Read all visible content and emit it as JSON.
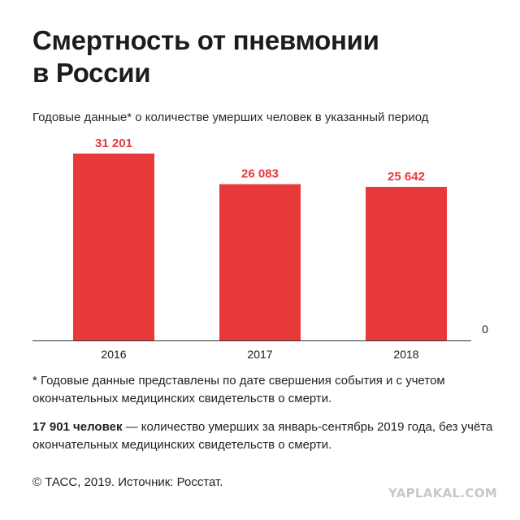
{
  "title_line1": "Смертность от пневмонии",
  "title_line2": "в России",
  "subtitle": "Годовые данные* о количестве умерших человек в указанный период",
  "colors": {
    "bar": "#e8393a",
    "axis": "#333333",
    "text": "#1a1a1a"
  },
  "chart_data": {
    "type": "bar",
    "categories": [
      "2016",
      "2017",
      "2018"
    ],
    "values": [
      31201,
      26083,
      25642
    ],
    "value_labels": [
      "31 201",
      "26 083",
      "25 642"
    ],
    "zero_label": "0",
    "ylim": [
      0,
      31201
    ],
    "grid": false
  },
  "footnote": "* Годовые данные представлены по дате свершения события и с учетом окончательных медицинских свидетельств о смерти.",
  "note": {
    "bold": "17 901 человек",
    "text": " — количество умерших за январь-сентябрь 2019 года, без учёта окончательных медицинских свидетельств о смерти."
  },
  "source": "© ТАСС, 2019. Источник: Росстат.",
  "watermark": "YAPLAKAL.COM"
}
